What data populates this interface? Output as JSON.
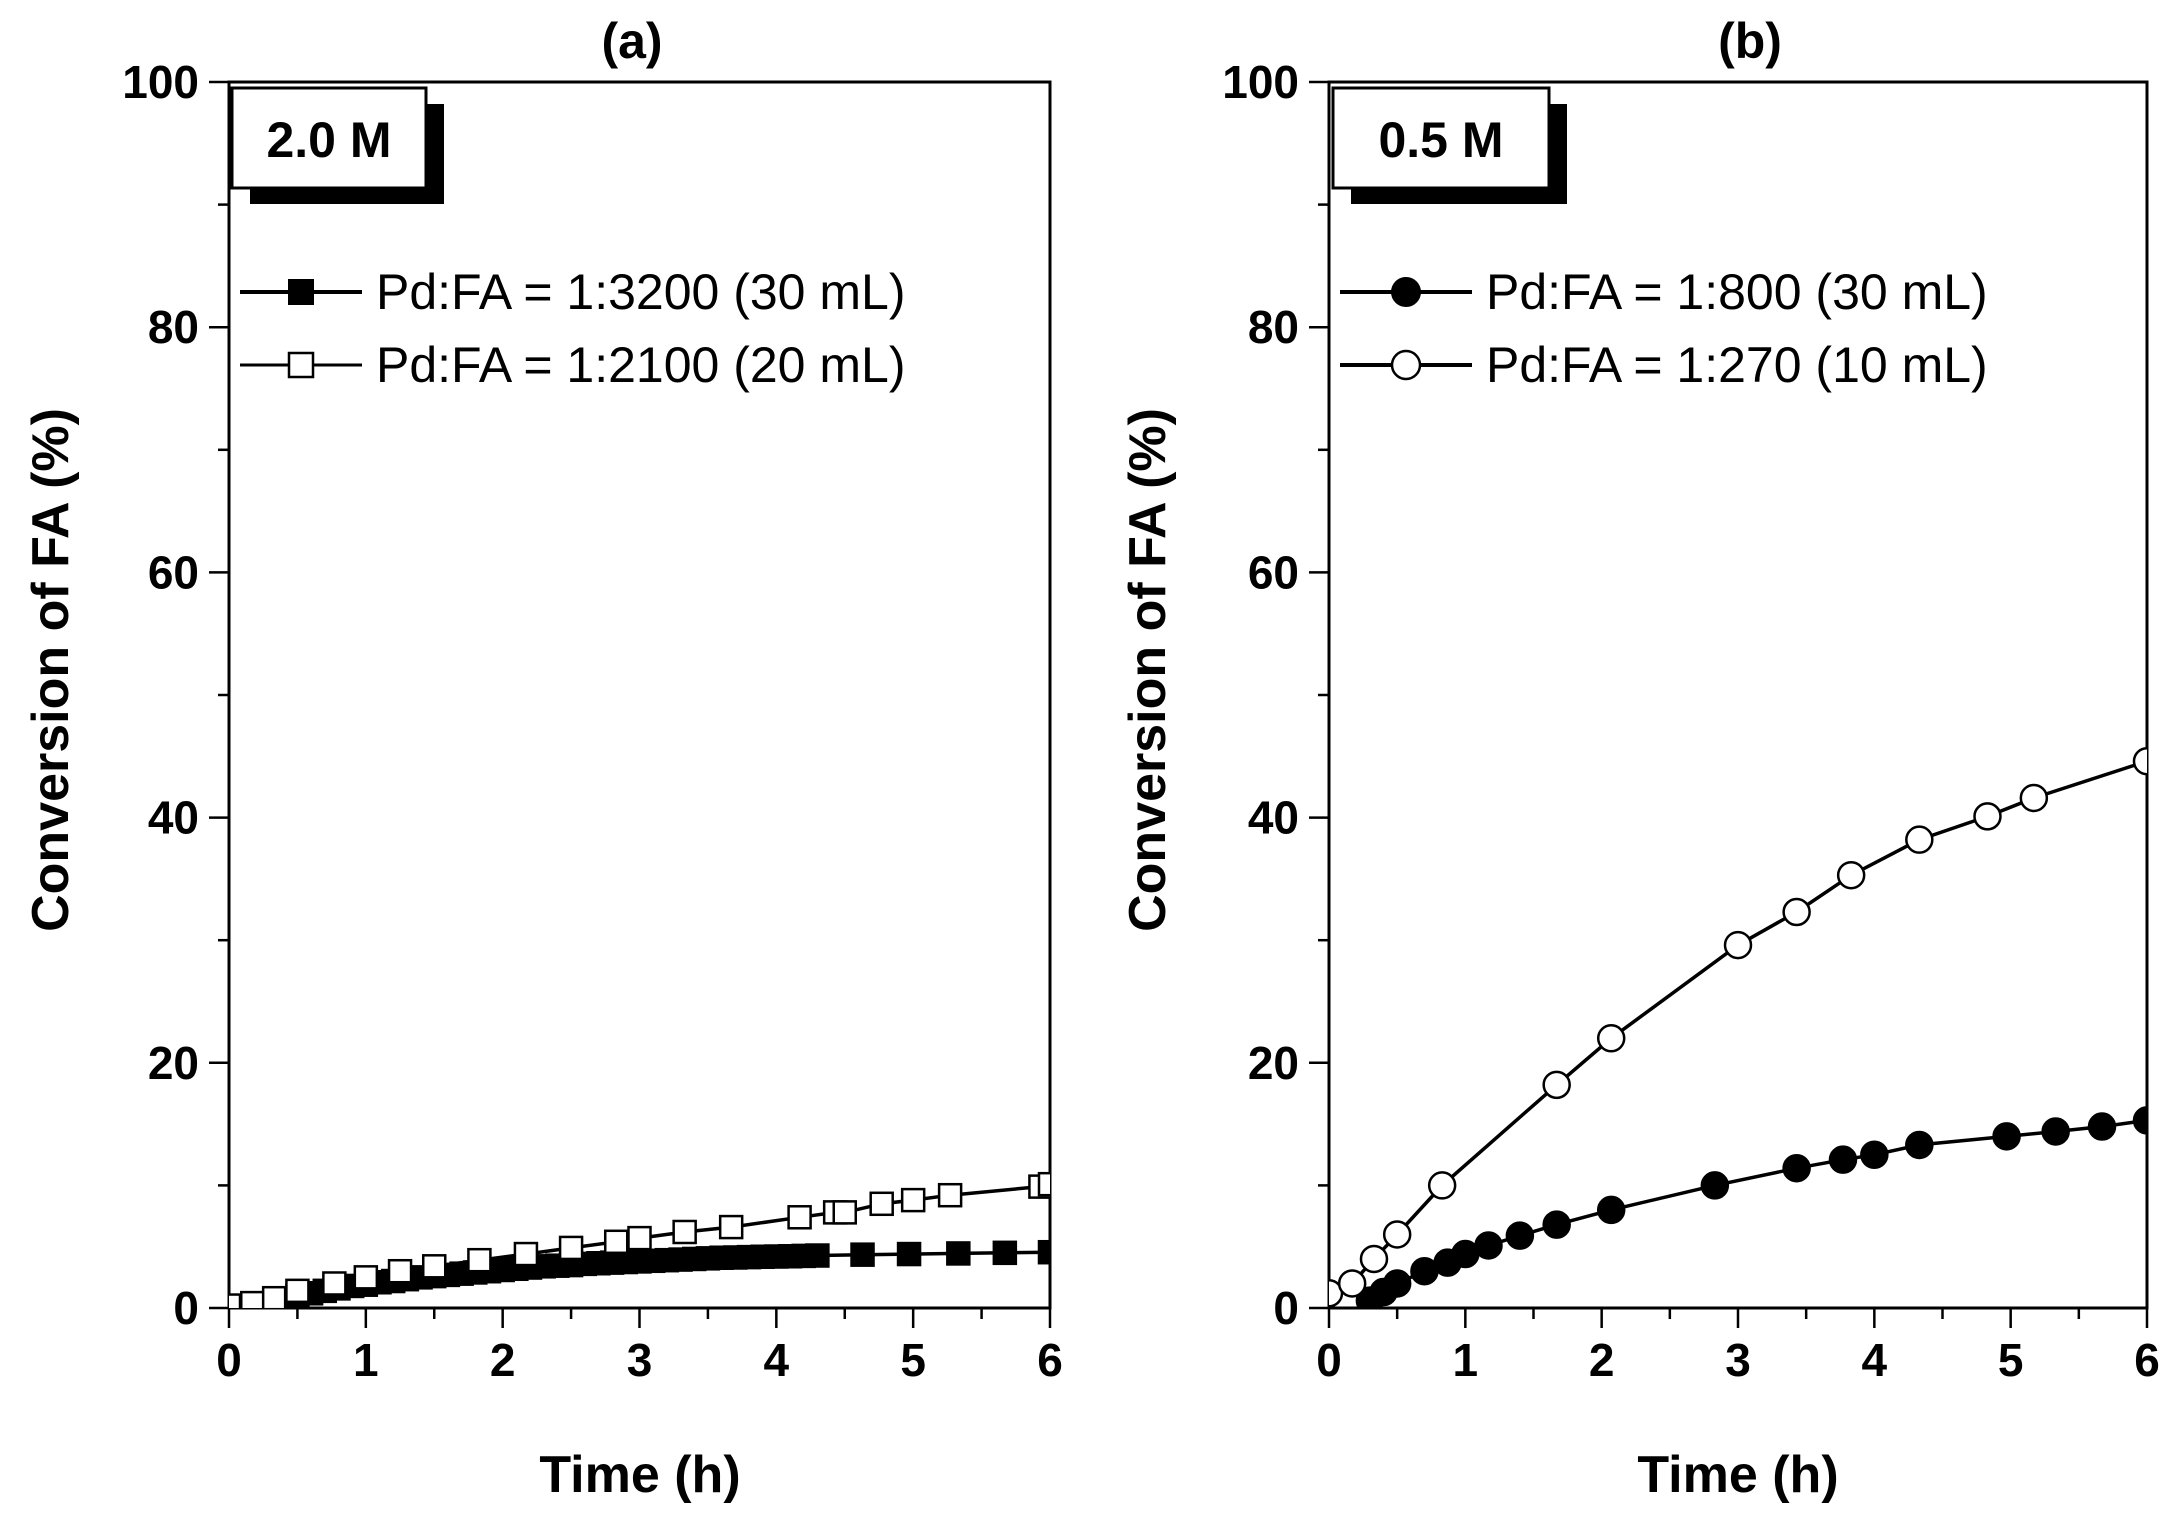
{
  "chart_data": [
    {
      "type": "line",
      "title": "(a)",
      "xlabel": "Time (h)",
      "ylabel": "Conversion of FA (%)",
      "xlim": [
        0,
        6
      ],
      "ylim": [
        0,
        100
      ],
      "xticks": [
        "0",
        "1",
        "2",
        "3",
        "4",
        "5",
        "6"
      ],
      "yticks": [
        "0",
        "20",
        "40",
        "60",
        "80",
        "100"
      ],
      "concentration_label": "2.0 M",
      "legend_position": "top-left",
      "series": [
        {
          "name": "Pd:FA = 1:3200 (30 mL)",
          "marker": "filled-square",
          "x": [
            0.5,
            0.6,
            0.7,
            0.8,
            0.9,
            1.0,
            1.1,
            1.2,
            1.3,
            1.4,
            1.5,
            1.6,
            1.7,
            1.8,
            1.9,
            2.0,
            2.1,
            2.2,
            2.3,
            2.4,
            2.5,
            2.6,
            2.7,
            2.8,
            2.9,
            3.0,
            3.1,
            3.2,
            3.3,
            3.4,
            3.5,
            3.6,
            3.7,
            3.8,
            3.9,
            4.0,
            4.1,
            4.2,
            4.3,
            4.63,
            4.97,
            5.33,
            5.67,
            6.0
          ],
          "y": [
            1.0,
            1.2,
            1.4,
            1.6,
            1.8,
            1.9,
            2.1,
            2.2,
            2.35,
            2.5,
            2.6,
            2.7,
            2.8,
            2.9,
            3.0,
            3.1,
            3.2,
            3.3,
            3.4,
            3.45,
            3.5,
            3.6,
            3.65,
            3.7,
            3.75,
            3.8,
            3.85,
            3.9,
            3.95,
            4.0,
            4.05,
            4.1,
            4.12,
            4.15,
            4.18,
            4.2,
            4.22,
            4.25,
            4.28,
            4.35,
            4.4,
            4.45,
            4.5,
            4.55
          ]
        },
        {
          "name": "Pd:FA = 1:2100 (20 mL)",
          "marker": "open-square",
          "x": [
            0.0,
            0.17,
            0.33,
            0.5,
            0.77,
            1.0,
            1.25,
            1.5,
            1.83,
            2.17,
            2.5,
            2.83,
            3.0,
            3.33,
            3.67,
            4.17,
            4.43,
            4.5,
            4.77,
            5.0,
            5.27,
            5.93,
            6.0
          ],
          "y": [
            0.2,
            0.4,
            0.8,
            1.4,
            2.0,
            2.5,
            3.0,
            3.4,
            3.9,
            4.4,
            4.9,
            5.4,
            5.7,
            6.2,
            6.6,
            7.4,
            7.8,
            7.8,
            8.5,
            8.8,
            9.2,
            9.9,
            10.1
          ]
        }
      ]
    },
    {
      "type": "line",
      "title": "(b)",
      "xlabel": "Time (h)",
      "ylabel": "Conversion of FA (%)",
      "xlim": [
        0,
        6
      ],
      "ylim": [
        0,
        100
      ],
      "xticks": [
        "0",
        "1",
        "2",
        "3",
        "4",
        "5",
        "6"
      ],
      "yticks": [
        "0",
        "20",
        "40",
        "60",
        "80",
        "100"
      ],
      "concentration_label": "0.5 M",
      "legend_position": "top-left",
      "series": [
        {
          "name": "Pd:FA = 1:800 (30 mL)",
          "marker": "filled-circle",
          "x": [
            0.3,
            0.4,
            0.5,
            0.7,
            0.87,
            1.0,
            1.17,
            1.4,
            1.67,
            2.07,
            2.83,
            3.43,
            3.77,
            4.0,
            4.33,
            4.97,
            5.33,
            5.67,
            6.0
          ],
          "y": [
            0.6,
            1.3,
            2.0,
            3.0,
            3.7,
            4.4,
            5.1,
            5.9,
            6.8,
            8.0,
            10.0,
            11.4,
            12.1,
            12.5,
            13.3,
            14.0,
            14.4,
            14.8,
            15.3
          ]
        },
        {
          "name": "Pd:FA = 1:270 (10 mL)",
          "marker": "open-circle",
          "x": [
            0.0,
            0.17,
            0.33,
            0.5,
            0.83,
            1.67,
            2.07,
            3.0,
            3.43,
            3.83,
            4.33,
            4.83,
            5.17,
            6.0
          ],
          "y": [
            1.2,
            2.0,
            4.0,
            6.0,
            10.0,
            18.2,
            22.0,
            29.6,
            32.3,
            35.3,
            38.2,
            40.1,
            41.6,
            44.6
          ]
        }
      ]
    }
  ]
}
